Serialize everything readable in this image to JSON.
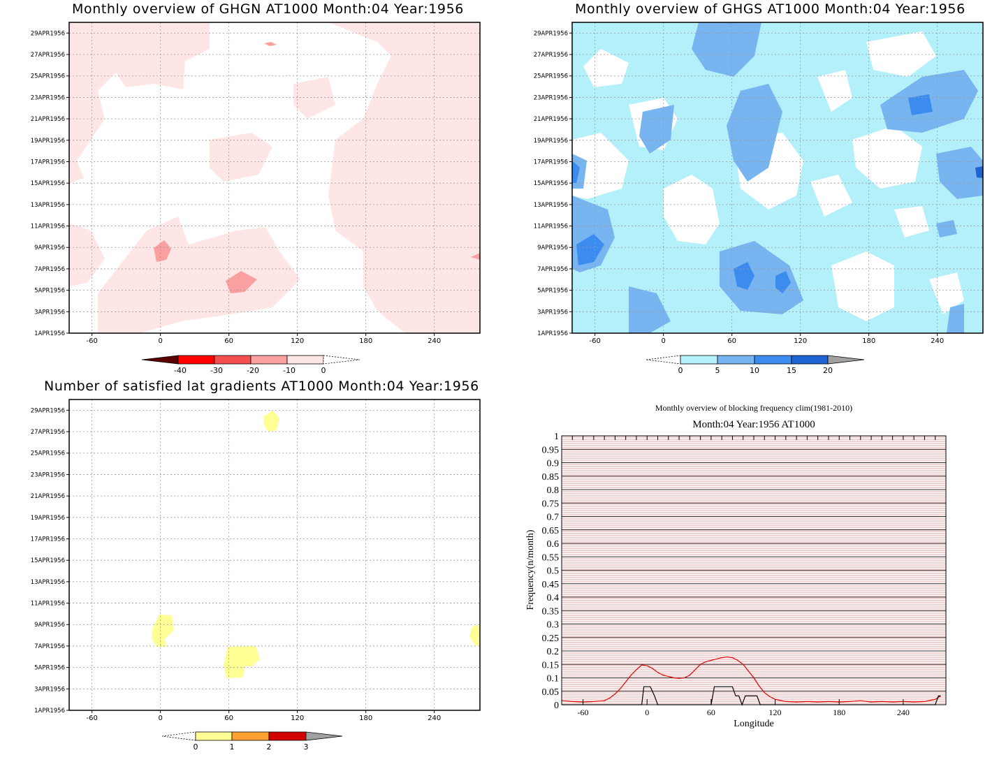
{
  "panels": {
    "ghgn": {
      "title": "Monthly overview of GHGN AT1000 Month:04 Year:1956",
      "colorbar_labels": [
        "-40",
        "-30",
        "-20",
        "-10",
        "0"
      ],
      "colors": [
        "#5a0000",
        "#ff0000",
        "#f55050",
        "#faa0a0",
        "#ffe6e6"
      ]
    },
    "ghgs": {
      "title": "Monthly overview of GHGS AT1000 Month:04 Year:1956",
      "colorbar_labels": [
        "0",
        "5",
        "10",
        "15",
        "20"
      ],
      "colors": [
        "#b4f0fa",
        "#78b4f0",
        "#3c8cf0",
        "#1e64d2",
        "#a0a0a0"
      ]
    },
    "grad": {
      "title": "Number of satisfied lat gradients AT1000 Month:04 Year:1956",
      "colorbar_labels": [
        "0",
        "1",
        "2",
        "3"
      ],
      "colors": [
        "#ffff96",
        "#ffa032",
        "#d20000",
        "#a0a0a0"
      ]
    }
  },
  "shared_axes": {
    "x_ticks": [
      "-60",
      "0",
      "60",
      "120",
      "180",
      "240"
    ],
    "y_ticks": [
      "1APR1956",
      "3APR1956",
      "5APR1956",
      "7APR1956",
      "9APR1956",
      "11APR1956",
      "13APR1956",
      "15APR1956",
      "17APR1956",
      "19APR1956",
      "21APR1956",
      "23APR1956",
      "25APR1956",
      "27APR1956",
      "29APR1956"
    ]
  },
  "chart_data": [
    {
      "type": "heatmap",
      "title": "Monthly overview of GHGN AT1000 Month:04 Year:1956",
      "x_range": [
        -80,
        280
      ],
      "y_range": [
        "1APR1956",
        "30APR1956"
      ],
      "levels": [
        -40,
        -30,
        -20,
        -10,
        0
      ],
      "x_ticks": [
        -60,
        0,
        60,
        120,
        180,
        240
      ]
    },
    {
      "type": "heatmap",
      "title": "Monthly overview of GHGS AT1000 Month:04 Year:1956",
      "x_range": [
        -80,
        280
      ],
      "y_range": [
        "1APR1956",
        "30APR1956"
      ],
      "levels": [
        0,
        5,
        10,
        15,
        20
      ],
      "x_ticks": [
        -60,
        0,
        60,
        120,
        180,
        240
      ]
    },
    {
      "type": "heatmap",
      "title": "Number of satisfied lat gradients AT1000 Month:04 Year:1956",
      "x_range": [
        -80,
        280
      ],
      "y_range": [
        "1APR1956",
        "30APR1956"
      ],
      "levels": [
        0,
        1,
        2,
        3
      ],
      "x_ticks": [
        -60,
        0,
        60,
        120,
        180,
        240
      ]
    },
    {
      "type": "line",
      "title": "Monthly overview of blocking frequency clim(1981-2010)",
      "subtitle": "Month:04 Year:1956  AT1000",
      "xlabel": "Longitude",
      "ylabel": "Frequency(n/month)",
      "xlim": [
        -80,
        280
      ],
      "ylim": [
        0,
        1
      ],
      "x_ticks": [
        -60,
        0,
        60,
        120,
        180,
        240
      ],
      "y_ticks": [
        "0",
        "0.05",
        "0.1",
        "0.15",
        "0.2",
        "0.25",
        "0.3",
        "0.35",
        "0.4",
        "0.45",
        "0.5",
        "0.55",
        "0.6",
        "0.65",
        "0.7",
        "0.75",
        "0.8",
        "0.85",
        "0.9",
        "0.95",
        "1"
      ],
      "grid": true,
      "series": [
        {
          "color": "#e00000",
          "x": [
            -80,
            -70,
            -60,
            -50,
            -40,
            -35,
            -30,
            -25,
            -20,
            -15,
            -10,
            -5,
            0,
            5,
            10,
            15,
            20,
            25,
            30,
            35,
            40,
            45,
            50,
            55,
            60,
            65,
            70,
            75,
            80,
            85,
            90,
            95,
            100,
            105,
            110,
            115,
            120,
            130,
            140,
            150,
            160,
            170,
            180,
            190,
            200,
            210,
            220,
            230,
            240,
            250,
            260,
            270,
            275
          ],
          "y": [
            0.015,
            0.012,
            0.01,
            0.012,
            0.015,
            0.025,
            0.04,
            0.06,
            0.085,
            0.11,
            0.13,
            0.148,
            0.145,
            0.135,
            0.12,
            0.11,
            0.105,
            0.1,
            0.098,
            0.1,
            0.11,
            0.13,
            0.15,
            0.16,
            0.165,
            0.17,
            0.175,
            0.178,
            0.175,
            0.165,
            0.15,
            0.125,
            0.1,
            0.07,
            0.045,
            0.03,
            0.02,
            0.012,
            0.01,
            0.012,
            0.01,
            0.012,
            0.01,
            0.012,
            0.015,
            0.01,
            0.012,
            0.01,
            0.012,
            0.01,
            0.012,
            0.02,
            0.032
          ]
        },
        {
          "color": "#000000",
          "x": [
            -80,
            -5,
            -3,
            3,
            7,
            10,
            60,
            63,
            80,
            83,
            86,
            89,
            92,
            95,
            103,
            106,
            270,
            273,
            275
          ],
          "y": [
            0,
            0,
            0.067,
            0.067,
            0.033,
            0,
            0,
            0.067,
            0.067,
            0.033,
            0.033,
            0,
            0.033,
            0.033,
            0.033,
            0,
            0,
            0.033,
            0.033
          ]
        }
      ]
    }
  ]
}
